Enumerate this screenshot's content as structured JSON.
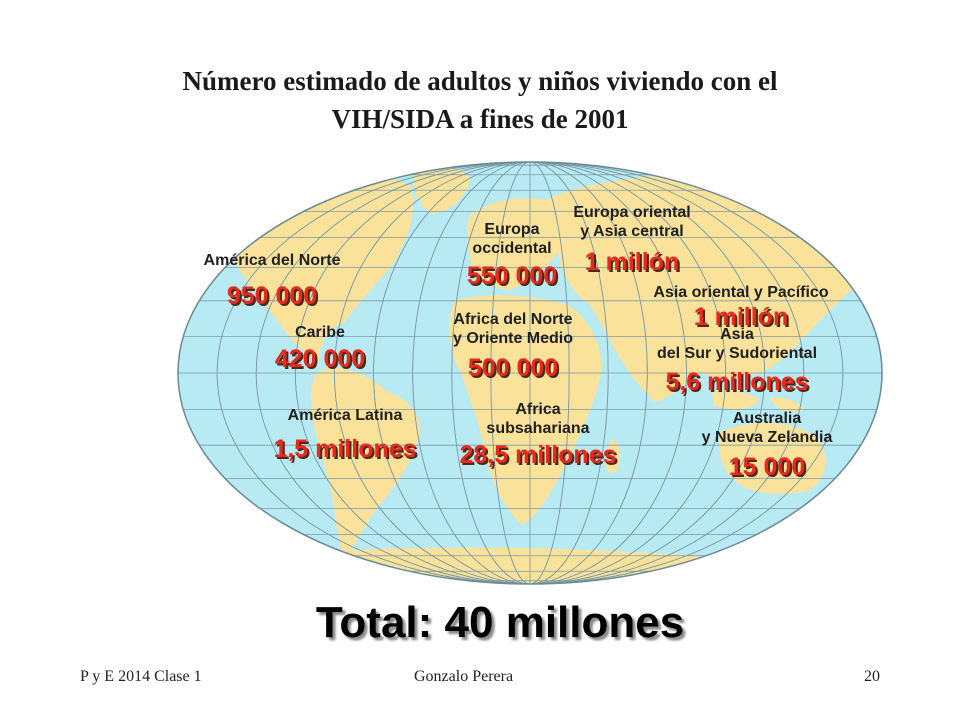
{
  "title_line1": "Número estimado de adultos y niños viviendo con el",
  "title_line2": "VIH/SIDA  a fines de 2001",
  "colors": {
    "ocean": "#b8eaf4",
    "land": "#fbe29a",
    "grid": "#7a9aa6",
    "value": "#e8291c"
  },
  "regions": [
    {
      "id": "america-del-norte",
      "label_lines": [
        "América del Norte"
      ],
      "value": "950 000"
    },
    {
      "id": "caribe",
      "label_lines": [
        "Caribe"
      ],
      "value": "420 000"
    },
    {
      "id": "america-latina",
      "label_lines": [
        "América Latina"
      ],
      "value": "1,5 millones"
    },
    {
      "id": "europa-occidental",
      "label_lines": [
        "Europa",
        "occidental"
      ],
      "value": "550 000"
    },
    {
      "id": "europa-oriental",
      "label_lines": [
        "Europa oriental",
        "y Asia central"
      ],
      "value": "1 millón"
    },
    {
      "id": "africa-del-norte",
      "label_lines": [
        "Africa del Norte",
        "y Oriente Medio"
      ],
      "value": "500 000"
    },
    {
      "id": "africa-subsahariana",
      "label_lines": [
        "Africa",
        "subsahariana"
      ],
      "value": "28,5 millones"
    },
    {
      "id": "asia-oriental",
      "label_lines": [
        "Asia oriental y Pacífico"
      ],
      "value": "1 millón"
    },
    {
      "id": "asia-sur",
      "label_lines": [
        "Asia",
        "del Sur y Sudoriental"
      ],
      "value": "5,6 millones"
    },
    {
      "id": "australia",
      "label_lines": [
        "Australia",
        "y Nueva Zelandia"
      ],
      "value": "15 000"
    }
  ],
  "total": "Total: 40 millones",
  "footer": {
    "left": "P y E 2014 Clase 1",
    "center": "Gonzalo Perera",
    "right": "20"
  }
}
